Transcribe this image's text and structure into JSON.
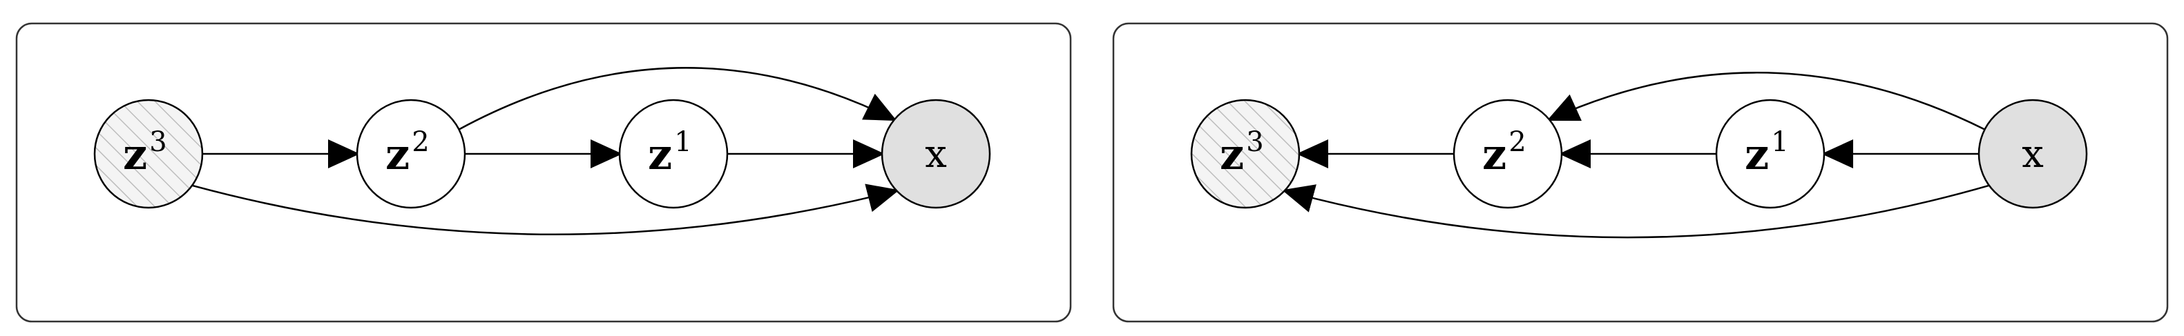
{
  "diagrams": [
    {
      "id": "left",
      "nodes": [
        {
          "id": "z3",
          "base": "z",
          "sup": "3",
          "style": "hatched"
        },
        {
          "id": "z2",
          "base": "z",
          "sup": "2",
          "style": "plain"
        },
        {
          "id": "z1",
          "base": "z",
          "sup": "1",
          "style": "plain"
        },
        {
          "id": "x",
          "base": "x",
          "sup": "",
          "style": "observed"
        }
      ],
      "edges": [
        {
          "from": "z3",
          "to": "z2"
        },
        {
          "from": "z2",
          "to": "z1"
        },
        {
          "from": "z1",
          "to": "x"
        },
        {
          "from": "z2",
          "to": "x"
        },
        {
          "from": "z3",
          "to": "x"
        }
      ]
    },
    {
      "id": "right",
      "nodes": [
        {
          "id": "z3",
          "base": "z",
          "sup": "3",
          "style": "hatched"
        },
        {
          "id": "z2",
          "base": "z",
          "sup": "2",
          "style": "plain"
        },
        {
          "id": "z1",
          "base": "z",
          "sup": "1",
          "style": "plain"
        },
        {
          "id": "x",
          "base": "x",
          "sup": "",
          "style": "observed"
        }
      ],
      "edges": [
        {
          "from": "x",
          "to": "z1"
        },
        {
          "from": "z1",
          "to": "z2"
        },
        {
          "from": "z2",
          "to": "z3"
        },
        {
          "from": "x",
          "to": "z2"
        },
        {
          "from": "x",
          "to": "z3"
        }
      ]
    }
  ],
  "colors": {
    "observed_fill": "#e0e0e0",
    "hatch_fill": "#f4f4f4",
    "hatch_line": "#bdbdbd",
    "stroke": "#000000"
  }
}
